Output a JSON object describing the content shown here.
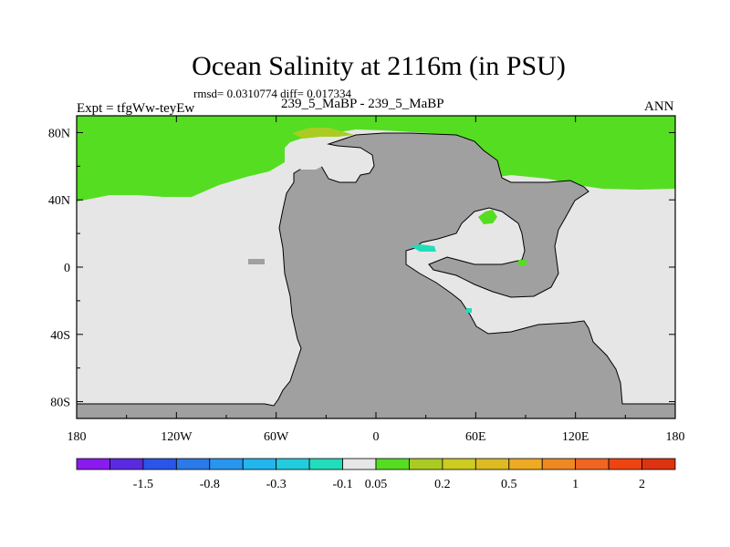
{
  "title": "Ocean Salinity at 2116m (in PSU)",
  "stats": "rmsd= 0.0310774 diff= 0.017334",
  "left_label": "Expt = tfgWw-teyEw",
  "subtitle": "239_5_MaBP - 239_5_MaBP",
  "right_label": "ANN",
  "colors": {
    "land": "#a0a0a0",
    "near_zero": "#e6e6e6",
    "green": "#55dd22",
    "teal": "#22ddbb",
    "olive": "#aacc22",
    "outline": "#000000"
  },
  "chart_data": {
    "type": "heatmap",
    "title": "Ocean Salinity at 2116m (in PSU)",
    "field": "salinity difference",
    "units": "PSU",
    "xlim": [
      -180,
      180
    ],
    "ylim": [
      -90,
      90
    ],
    "x_ticks": [
      {
        "value": -180,
        "label": "180"
      },
      {
        "value": -120,
        "label": "120W"
      },
      {
        "value": -60,
        "label": "60W"
      },
      {
        "value": 0,
        "label": "0"
      },
      {
        "value": 60,
        "label": "60E"
      },
      {
        "value": 120,
        "label": "120E"
      },
      {
        "value": 180,
        "label": "180"
      }
    ],
    "y_ticks": [
      {
        "value": 80,
        "label": "80N"
      },
      {
        "value": 40,
        "label": "40N"
      },
      {
        "value": 0,
        "label": "0"
      },
      {
        "value": -40,
        "label": "40S"
      },
      {
        "value": -80,
        "label": "80S"
      }
    ],
    "colorbar": {
      "colors": [
        "#8a1aee",
        "#5a2ae0",
        "#2a55e8",
        "#2a7ae8",
        "#2a95ee",
        "#22b5ee",
        "#22ccdd",
        "#22ddbb",
        "#e6e6e6",
        "#55dd22",
        "#aacc22",
        "#cccc22",
        "#ddbb22",
        "#eeaa22",
        "#ee8822",
        "#ee6622",
        "#ee4411",
        "#dd3311"
      ],
      "labels": [
        {
          "index": 2,
          "label": "-1.5"
        },
        {
          "index": 4,
          "label": "-0.8"
        },
        {
          "index": 6,
          "label": "-0.3"
        },
        {
          "index": 8,
          "label": "-0.1"
        },
        {
          "index": 9,
          "label": "0.05"
        },
        {
          "index": 11,
          "label": "0.2"
        },
        {
          "index": 13,
          "label": "0.5"
        },
        {
          "index": 15,
          "label": "1"
        },
        {
          "index": 17,
          "label": "2"
        }
      ]
    },
    "regions": [
      {
        "name": "northern-ocean",
        "value": 0.1,
        "lon_range": [
          -180,
          180
        ],
        "lat_range": [
          37,
          90
        ]
      },
      {
        "name": "ocean-near-zero",
        "value": 0.0,
        "lon_range": [
          -180,
          180
        ],
        "lat_range": [
          -90,
          37
        ]
      }
    ]
  }
}
